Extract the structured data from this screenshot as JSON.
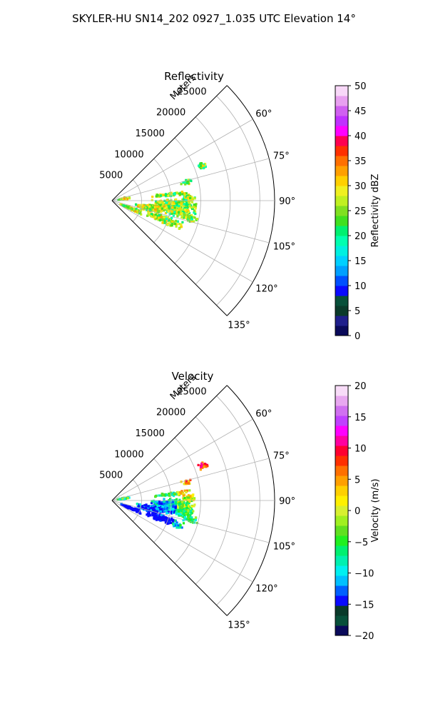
{
  "suptitle": "SKYLER-HU  SN14_202  0927_1.035 UTC Elevation 14°",
  "chart_data": [
    {
      "type": "polar-sector",
      "title": "Reflectivity",
      "radial_axis_label": "Meters",
      "radial_ticks": [
        "5000",
        "10000",
        "15000",
        "20000",
        "25000"
      ],
      "radial_tick_values": [
        5000,
        10000,
        15000,
        20000,
        25000
      ],
      "rmax": 27500,
      "azimuth_range_deg": [
        45,
        135
      ],
      "azimuth_ticks": [
        "60°",
        "75°",
        "90°",
        "105°",
        "120°",
        "135°"
      ],
      "azimuth_tick_values": [
        60,
        75,
        90,
        105,
        120,
        135
      ],
      "grid": true,
      "colorbar": {
        "label": "Reflectivity dBZ",
        "ticks": [
          "0",
          "5",
          "10",
          "15",
          "20",
          "25",
          "30",
          "35",
          "40",
          "45",
          "50"
        ],
        "min": 0,
        "max": 50,
        "colors": [
          "#0a0a5a",
          "#1f1f8c",
          "#0a3a2a",
          "#08503a",
          "#0a0aff",
          "#0050ff",
          "#00a0ff",
          "#00d0ff",
          "#00f0e0",
          "#00ffb0",
          "#00f070",
          "#40e020",
          "#80e020",
          "#c0f020",
          "#f0f020",
          "#ffd000",
          "#ffa000",
          "#ff7000",
          "#ff3000",
          "#ff0050",
          "#ff00ff",
          "#c030ff",
          "#d060f0",
          "#e8a0f0",
          "#f8d8f8"
        ]
      }
    },
    {
      "type": "polar-sector",
      "title": "Velocity",
      "radial_axis_label": "Meters",
      "radial_ticks": [
        "5000",
        "10000",
        "15000",
        "20000",
        "25000"
      ],
      "radial_tick_values": [
        5000,
        10000,
        15000,
        20000,
        25000
      ],
      "rmax": 27500,
      "azimuth_range_deg": [
        45,
        135
      ],
      "azimuth_ticks": [
        "60°",
        "75°",
        "90°",
        "105°",
        "120°",
        "135°"
      ],
      "azimuth_tick_values": [
        60,
        75,
        90,
        105,
        120,
        135
      ],
      "grid": true,
      "colorbar": {
        "label": "Velocity (m/s)",
        "ticks": [
          "−20",
          "−15",
          "−10",
          "−5",
          "0",
          "5",
          "10",
          "15",
          "20"
        ],
        "min": -20,
        "max": 20,
        "colors": [
          "#0a0a5a",
          "#08503a",
          "#0a3a2a",
          "#0a0aff",
          "#0060ff",
          "#00c0ff",
          "#00f0f0",
          "#00f0b0",
          "#00f070",
          "#20f020",
          "#60e020",
          "#a0f020",
          "#d8f030",
          "#fff000",
          "#ffd000",
          "#ffa000",
          "#ff7000",
          "#ff3000",
          "#ff0030",
          "#ff00a0",
          "#ff00ff",
          "#c040ff",
          "#d070f0",
          "#e8a8f0",
          "#f8dcf8"
        ]
      }
    }
  ]
}
